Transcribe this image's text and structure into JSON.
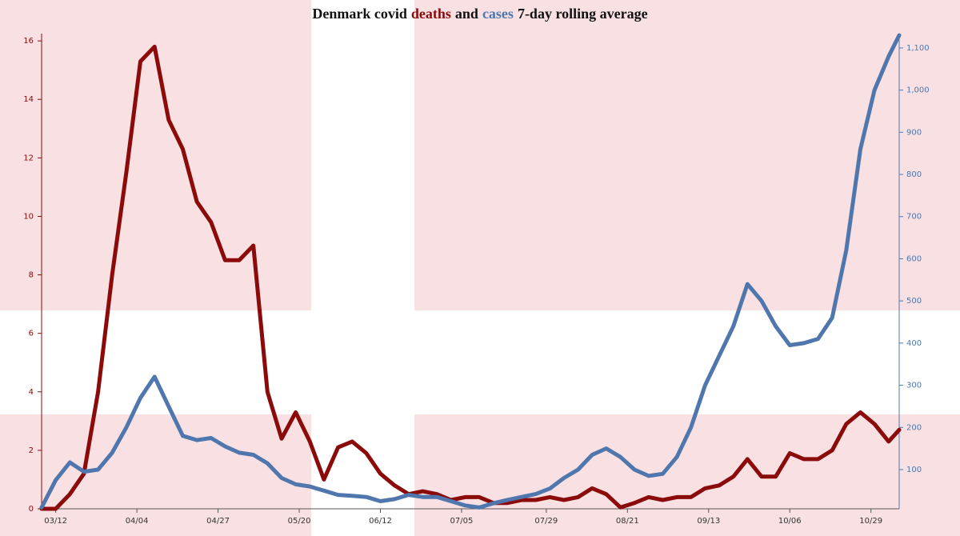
{
  "chart_data": {
    "type": "line",
    "title": [
      "Denmark covid",
      "and",
      "7-day rolling average"
    ],
    "x": [
      "03/08",
      "03/12",
      "03/16",
      "03/20",
      "03/24",
      "03/28",
      "04/01",
      "04/05",
      "04/09",
      "04/13",
      "04/17",
      "04/21",
      "04/25",
      "04/29",
      "05/03",
      "05/07",
      "05/11",
      "05/15",
      "05/19",
      "05/23",
      "05/27",
      "05/31",
      "06/04",
      "06/08",
      "06/12",
      "06/16",
      "06/20",
      "06/24",
      "06/28",
      "07/02",
      "07/06",
      "07/10",
      "07/14",
      "07/18",
      "07/22",
      "07/26",
      "07/30",
      "08/03",
      "08/07",
      "08/11",
      "08/15",
      "08/19",
      "08/23",
      "08/27",
      "08/31",
      "09/04",
      "09/08",
      "09/12",
      "09/16",
      "09/20",
      "09/24",
      "09/28",
      "10/02",
      "10/06",
      "10/10",
      "10/14",
      "10/18",
      "10/22",
      "10/26",
      "10/30",
      "11/03",
      "11/06"
    ],
    "series": [
      {
        "name": "deaths",
        "color": "#8b0a0a",
        "axis": "y",
        "values": [
          0,
          0,
          0.5,
          1.2,
          4,
          8,
          11.5,
          15.3,
          15.8,
          13.3,
          12.3,
          10.5,
          9.8,
          8.5,
          8.5,
          9,
          4,
          2.4,
          3.3,
          2.3,
          1,
          2.1,
          2.3,
          1.9,
          1.2,
          0.8,
          0.5,
          0.6,
          0.5,
          0.3,
          0.4,
          0.4,
          0.2,
          0.2,
          0.3,
          0.3,
          0.4,
          0.3,
          0.4,
          0.7,
          0.5,
          0.05,
          0.2,
          0.4,
          0.3,
          0.4,
          0.4,
          0.7,
          0.8,
          1.1,
          1.7,
          1.1,
          1.1,
          1.9,
          1.7,
          1.7,
          2.0,
          2.9,
          3.3,
          2.9,
          2.3,
          2.7
        ]
      },
      {
        "name": "cases",
        "color": "#4f77ad",
        "axis": "y2",
        "values": [
          10,
          75,
          117,
          95,
          100,
          140,
          200,
          270,
          320,
          250,
          180,
          170,
          175,
          155,
          140,
          135,
          115,
          80,
          65,
          60,
          50,
          40,
          38,
          35,
          25,
          30,
          40,
          35,
          35,
          25,
          15,
          10,
          20,
          28,
          35,
          42,
          55,
          80,
          100,
          135,
          150,
          130,
          100,
          85,
          90,
          130,
          200,
          300,
          370,
          440,
          540,
          500,
          440,
          395,
          400,
          410,
          460,
          620,
          860,
          1000,
          1080,
          1130
        ]
      }
    ],
    "xlim": [
      "03/08",
      "11/06"
    ],
    "xticks": [
      "03/12",
      "04/04",
      "04/27",
      "05/20",
      "06/12",
      "07/05",
      "07/29",
      "08/21",
      "09/13",
      "10/06",
      "10/29"
    ],
    "ylim": [
      0,
      16.25
    ],
    "yticks": [
      0,
      2,
      4,
      6,
      8,
      10,
      12,
      14,
      16
    ],
    "y2lim": [
      7,
      1134
    ],
    "y2ticks": [
      100,
      200,
      300,
      400,
      500,
      600,
      700,
      800,
      900,
      {
        "value": 1000,
        "label": "1,000"
      },
      {
        "value": 1100,
        "label": "1,100"
      }
    ],
    "grid": false
  }
}
